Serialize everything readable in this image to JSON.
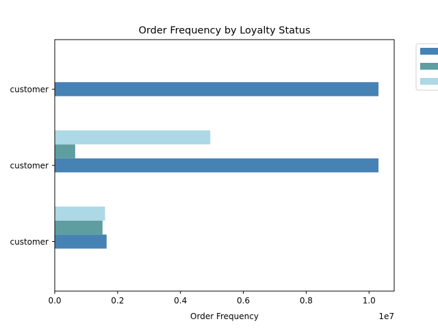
{
  "chart_data": {
    "type": "bar",
    "orientation": "horizontal",
    "title": "Order Frequency by Loyalty Status",
    "xlabel": "Order Frequency",
    "ylabel": "",
    "x_offset_label": "1e7",
    "xlim": [
      0,
      1.08
    ],
    "x_ticks": [
      {
        "value": 0.0,
        "label": "0.0"
      },
      {
        "value": 0.2,
        "label": "0.2"
      },
      {
        "value": 0.4,
        "label": "0.4"
      },
      {
        "value": 0.6,
        "label": "0.6"
      },
      {
        "value": 0.8,
        "label": "0.8"
      },
      {
        "value": 1.0,
        "label": "1.0"
      }
    ],
    "categories": [
      "customer",
      "customer",
      "customer"
    ],
    "series": [
      {
        "color": "#4682b4",
        "values": [
          1.03,
          1.03,
          0.165
        ]
      },
      {
        "color": "#5f9ea0",
        "values": [
          0,
          0.065,
          0.152
        ]
      },
      {
        "color": "#add8e6",
        "values": [
          0,
          0.495,
          0.16
        ]
      }
    ],
    "legend": {
      "position": "outside-right",
      "entries": [
        "",
        "",
        ""
      ]
    },
    "grid": false
  }
}
